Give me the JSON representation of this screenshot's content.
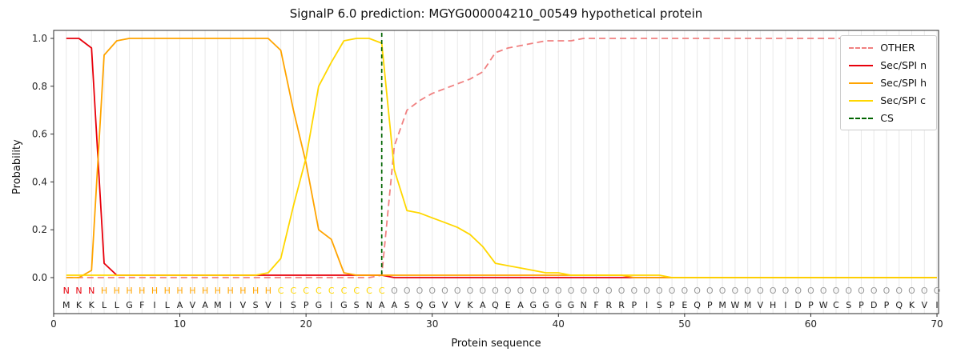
{
  "title": "SignalP 6.0 prediction: MGYG000004210_00549 hypothetical protein",
  "axes": {
    "xlabel": "Protein sequence",
    "ylabel": "Probability"
  },
  "legend": {
    "position": "upper right",
    "entries": [
      {
        "label": "OTHER",
        "color": "#f08080",
        "style": "dashed"
      },
      {
        "label": "Sec/SPI n",
        "color": "#e8000b",
        "style": "solid"
      },
      {
        "label": "Sec/SPI h",
        "color": "#ffa400",
        "style": "solid"
      },
      {
        "label": "Sec/SPI c",
        "color": "#ffd700",
        "style": "solid"
      },
      {
        "label": "CS",
        "color": "#006400",
        "style": "dashed"
      }
    ]
  },
  "chart_data": {
    "type": "line",
    "title": "SignalP 6.0 prediction: MGYG000004210_00549 hypothetical protein",
    "xlabel": "Protein sequence",
    "ylabel": "Probability",
    "xticks": [
      0,
      10,
      20,
      30,
      40,
      50,
      60,
      70
    ],
    "yticks": [
      0.0,
      0.2,
      0.4,
      0.6,
      0.8,
      1.0
    ],
    "xlim": [
      0,
      70.2
    ],
    "ylim": [
      0,
      1.0
    ],
    "grid": "vertical-per-residue",
    "x": [
      1,
      2,
      3,
      4,
      5,
      6,
      7,
      8,
      9,
      10,
      11,
      12,
      13,
      14,
      15,
      16,
      17,
      18,
      19,
      20,
      21,
      22,
      23,
      24,
      25,
      26,
      27,
      28,
      29,
      30,
      31,
      32,
      33,
      34,
      35,
      36,
      37,
      38,
      39,
      40,
      41,
      42,
      43,
      44,
      45,
      46,
      47,
      48,
      49,
      50,
      51,
      52,
      53,
      54,
      55,
      56,
      57,
      58,
      59,
      60,
      61,
      62,
      63,
      64,
      65,
      66,
      67,
      68,
      69,
      70
    ],
    "series": [
      {
        "name": "OTHER",
        "color": "#f08080",
        "dash": true,
        "values": [
          0,
          0,
          0,
          0,
          0,
          0,
          0,
          0,
          0,
          0,
          0,
          0,
          0,
          0,
          0,
          0,
          0,
          0,
          0,
          0,
          0,
          0,
          0,
          0,
          0,
          0.01,
          0.55,
          0.7,
          0.74,
          0.77,
          0.79,
          0.81,
          0.83,
          0.86,
          0.94,
          0.96,
          0.97,
          0.98,
          0.99,
          0.99,
          0.99,
          1.0,
          1.0,
          1.0,
          1.0,
          1.0,
          1.0,
          1.0,
          1.0,
          1.0,
          1.0,
          1.0,
          1.0,
          1.0,
          1.0,
          1.0,
          1.0,
          1.0,
          1.0,
          1.0,
          1.0,
          1.0,
          1.0,
          1.0,
          1.0,
          1.0,
          1.0,
          1.0,
          1.0,
          1.0
        ]
      },
      {
        "name": "Sec/SPI n",
        "color": "#e8000b",
        "dash": false,
        "values": [
          1.0,
          1.0,
          0.96,
          0.06,
          0.01,
          0.01,
          0.01,
          0.01,
          0.01,
          0.01,
          0.01,
          0.01,
          0.01,
          0.01,
          0.01,
          0.01,
          0.01,
          0.01,
          0.01,
          0.01,
          0.01,
          0.01,
          0.01,
          0.01,
          0.01,
          0.01,
          0,
          0,
          0,
          0,
          0,
          0,
          0,
          0,
          0,
          0,
          0,
          0,
          0,
          0,
          0,
          0,
          0,
          0,
          0,
          0,
          0,
          0,
          0,
          0,
          0,
          0,
          0,
          0,
          0,
          0,
          0,
          0,
          0,
          0,
          0,
          0,
          0,
          0,
          0,
          0,
          0,
          0,
          0,
          0
        ]
      },
      {
        "name": "Sec/SPI h",
        "color": "#ffa400",
        "dash": false,
        "values": [
          0,
          0,
          0.03,
          0.93,
          0.99,
          1.0,
          1.0,
          1.0,
          1.0,
          1.0,
          1.0,
          1.0,
          1.0,
          1.0,
          1.0,
          1.0,
          1.0,
          0.95,
          0.7,
          0.48,
          0.2,
          0.16,
          0.02,
          0.01,
          0.01,
          0.01,
          0.01,
          0.01,
          0.01,
          0.01,
          0.01,
          0.01,
          0.01,
          0.01,
          0.01,
          0.01,
          0.01,
          0.01,
          0.01,
          0.01,
          0.01,
          0.01,
          0.01,
          0.01,
          0.01,
          0,
          0,
          0,
          0,
          0,
          0,
          0,
          0,
          0,
          0,
          0,
          0,
          0,
          0,
          0,
          0,
          0,
          0,
          0,
          0,
          0,
          0,
          0,
          0,
          0
        ]
      },
      {
        "name": "Sec/SPI c",
        "color": "#ffd700",
        "dash": false,
        "values": [
          0.01,
          0.01,
          0.01,
          0.01,
          0.01,
          0.01,
          0.01,
          0.01,
          0.01,
          0.01,
          0.01,
          0.01,
          0.01,
          0.01,
          0.01,
          0.01,
          0.02,
          0.08,
          0.3,
          0.5,
          0.8,
          0.9,
          0.99,
          1.0,
          1.0,
          0.98,
          0.45,
          0.28,
          0.27,
          0.25,
          0.23,
          0.21,
          0.18,
          0.13,
          0.06,
          0.05,
          0.04,
          0.03,
          0.02,
          0.02,
          0.01,
          0.01,
          0.01,
          0.01,
          0.01,
          0.01,
          0.01,
          0.01,
          0,
          0,
          0,
          0,
          0,
          0,
          0,
          0,
          0,
          0,
          0,
          0,
          0,
          0,
          0,
          0,
          0,
          0,
          0,
          0,
          0,
          0
        ]
      }
    ],
    "cs_line": {
      "name": "CS",
      "x": 26,
      "color": "#006400",
      "dash": true
    },
    "residues": "MKKLLGFILAVAMIVSVISPGIGSNAASQGVVKAQEAGGGGNFRRPISPEQPMWMVHIDPWCSPDPQKVI",
    "region_labels": "NNNHHHHHHHHHHHHHHCCCCCCCCCOOOOOOOOOOOOOOOOOOOOOOOOOOOOOOOOOOOOOOOOOOOO",
    "region_colors": {
      "N": "#e8000b",
      "H": "#ffa400",
      "C": "#ffd700",
      "O": "#999999"
    }
  }
}
